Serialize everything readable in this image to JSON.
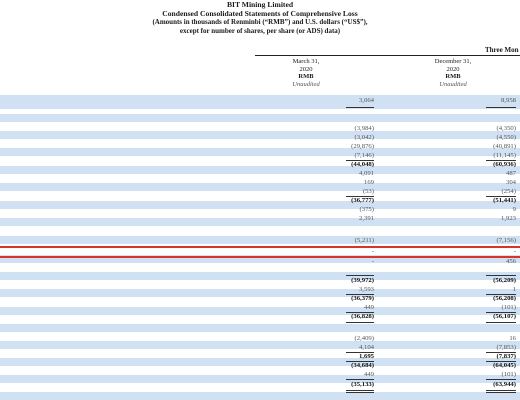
{
  "header": {
    "company": "BIT Mining Limited",
    "statement": "Condensed Consolidated Statements of Comprehensive Loss",
    "units_line": "(Amounts in thousands of Renminbi (“RMB”) and U.S. dollars (“US$”),",
    "units_line2": "except for number of shares, per share (or ADS) data)"
  },
  "period_label": "Three Mon",
  "columns": [
    {
      "date": "March 31,",
      "year": "2020",
      "currency": "RMB",
      "status": "Unaudited"
    },
    {
      "date": "December 31,",
      "year": "2020",
      "currency": "RMB",
      "status": "Unaudited"
    }
  ],
  "rows": [
    {
      "c1": "3,064",
      "c2": "8,958"
    },
    {
      "c1": "(3,984)",
      "c2": "(4,350)"
    },
    {
      "c1": "(3,042)",
      "c2": "(4,550)"
    },
    {
      "c1": "(29,876)",
      "c2": "(40,891)"
    },
    {
      "c1": "(7,146)",
      "c2": "(11,145)"
    },
    {
      "c1": "(44,048)",
      "c2": "(60,936)"
    },
    {
      "c1": "4,091",
      "c2": "487"
    },
    {
      "c1": "169",
      "c2": "304"
    },
    {
      "c1": "(53)",
      "c2": "(254)"
    },
    {
      "c1": "(36,777)",
      "c2": "(51,441)"
    },
    {
      "c1": "(375)",
      "c2": "9"
    },
    {
      "c1": "2,391",
      "c2": "1,923"
    },
    {
      "c1": "(5,211)",
      "c2": "(7,156)"
    },
    {
      "c1": "-",
      "c2": "-"
    },
    {
      "c1": "-",
      "c2": "456"
    },
    {
      "c1": "(39,972)",
      "c2": "(56,209)"
    },
    {
      "c1": "3,593",
      "c2": "1"
    },
    {
      "c1": "(36,379)",
      "c2": "(56,208)"
    },
    {
      "c1": "449",
      "c2": "(101)"
    },
    {
      "c1": "(36,828)",
      "c2": "(56,107)"
    },
    {
      "c1": "(2,409)",
      "c2": "16"
    },
    {
      "c1": "4,104",
      "c2": "(7,853)"
    },
    {
      "c1": "1,695",
      "c2": "(7,837)"
    },
    {
      "c1": "(34,684)",
      "c2": "(64,045)"
    },
    {
      "c1": "449",
      "c2": "(101)"
    },
    {
      "c1": "(35,133)",
      "c2": "(63,944)"
    }
  ]
}
